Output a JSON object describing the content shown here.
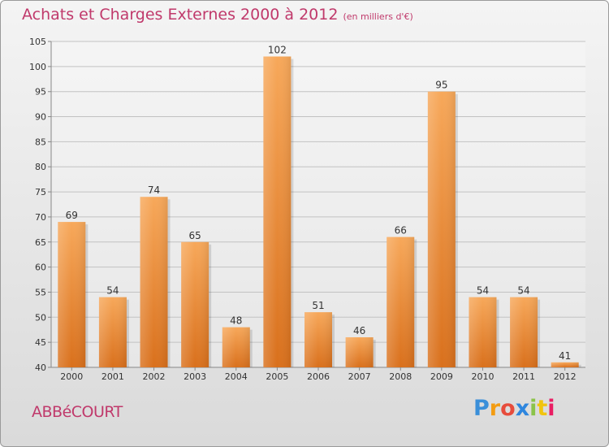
{
  "chart_data": {
    "type": "bar",
    "title": "Achats et Charges Externes 2000 à 2012",
    "subtitle": "(en milliers d'€)",
    "categories": [
      "2000",
      "2001",
      "2002",
      "2003",
      "2004",
      "2005",
      "2006",
      "2007",
      "2008",
      "2009",
      "2010",
      "2011",
      "2012"
    ],
    "values": [
      69,
      54,
      74,
      65,
      48,
      102,
      51,
      46,
      66,
      95,
      54,
      54,
      41
    ],
    "ylim": [
      40,
      105
    ],
    "yticks": [
      40,
      45,
      50,
      55,
      60,
      65,
      70,
      75,
      80,
      85,
      90,
      95,
      100,
      105
    ],
    "grid": true,
    "bar_color": "#f0923a",
    "title_color": "#c0396b"
  },
  "commune": "ABBéCOURT",
  "logo": {
    "text": "Proxiti",
    "letters": [
      "P",
      "r",
      "o",
      "x",
      "i",
      "t",
      "i"
    ],
    "letter_colors": [
      "#3a8fd9",
      "#f39c12",
      "#e74c3c",
      "#2e86de",
      "#8bc34a",
      "#f1c40f",
      "#e91e63"
    ]
  }
}
